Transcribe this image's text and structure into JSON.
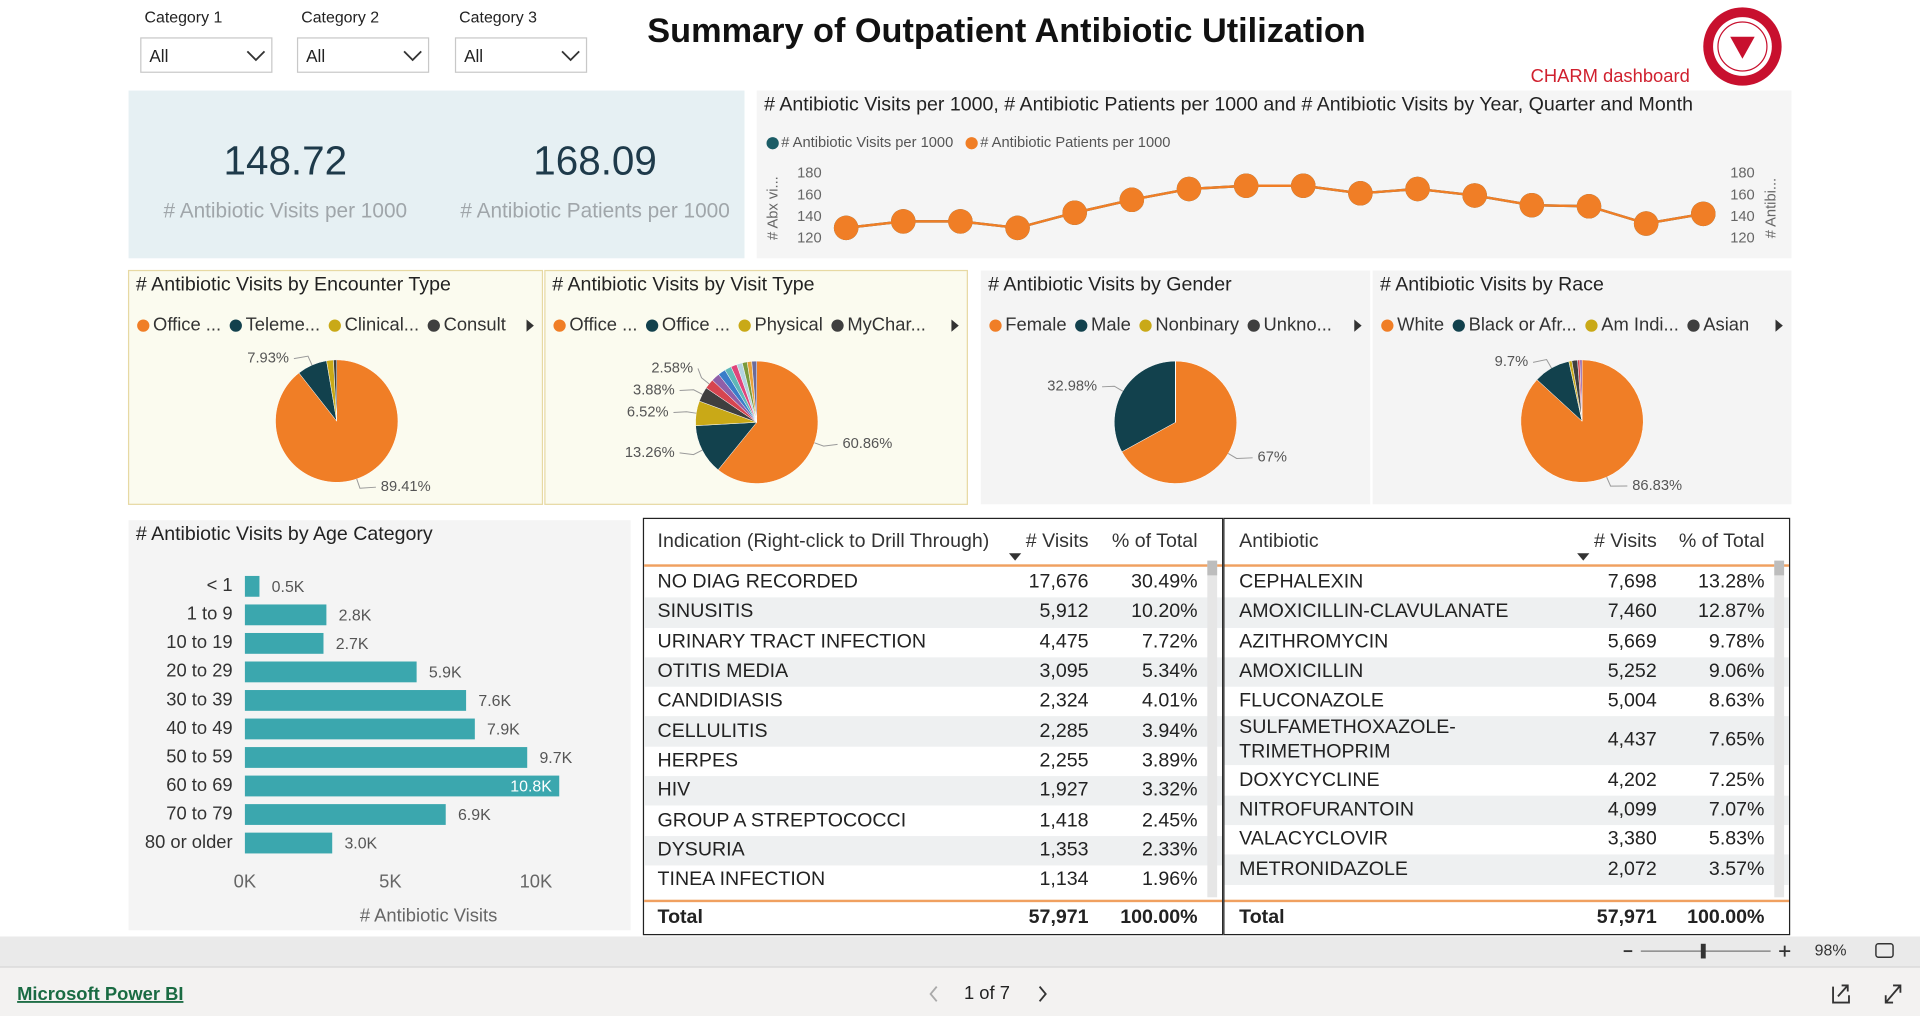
{
  "header": {
    "title": "Summary of Outpatient Antibiotic Utilization",
    "subtitle": "CHARM dashboard"
  },
  "filters": [
    {
      "label": "Category 1",
      "value": "All"
    },
    {
      "label": "Category 2",
      "value": "All"
    },
    {
      "label": "Category 3",
      "value": "All"
    }
  ],
  "kpis": [
    {
      "value": 148.72,
      "label": "# Antibiotic Visits per 1000"
    },
    {
      "value": 168.09,
      "label": "# Antibiotic Patients per 1000"
    }
  ],
  "chart_data": [
    {
      "type": "line",
      "title": "# Antibiotic Visits per 1000, # Antibiotic Patients per 1000 and # Antibiotic Visits by Year, Quarter and Month",
      "categories": [
        null,
        null,
        null,
        null,
        null,
        null,
        null,
        null,
        null,
        null,
        null,
        null,
        null,
        null,
        null,
        null
      ],
      "series": [
        {
          "name": "# Antibiotic Visits per 1000",
          "color": "#1b5c66",
          "values": [
            130,
            136,
            136,
            130,
            144,
            156,
            166,
            169,
            169,
            162,
            166,
            160,
            151,
            150,
            134,
            143
          ]
        },
        {
          "name": "# Antibiotic Patients per 1000",
          "color": "#f07e26",
          "axis": "y2",
          "values": [
            130,
            136,
            136,
            130,
            144,
            156,
            166,
            169,
            169,
            162,
            166,
            160,
            151,
            150,
            134,
            143
          ]
        }
      ],
      "ylabel": "# Abx vi...",
      "y2label": "# Antibi...",
      "ylim": [
        115,
        185
      ],
      "yticks": [
        120,
        140,
        160,
        180
      ],
      "y2lim": [
        115,
        185
      ],
      "y2ticks": [
        120,
        140,
        160,
        180
      ]
    },
    {
      "type": "pie",
      "title": "# Antibiotic Visits by Encounter Type",
      "categories": [
        "Office ...",
        "Teleme...",
        "Clinical...",
        "Consult"
      ],
      "values": [
        89.41,
        7.93,
        1.8,
        0.86
      ],
      "value_labels": [
        "89.41%",
        "7.93%",
        null,
        null
      ],
      "colors": [
        "#f07e26",
        "#12414d",
        "#c9a917",
        "#3f3f3f"
      ]
    },
    {
      "type": "pie",
      "title": "# Antibiotic Visits by Visit Type",
      "categories": [
        "Office ...",
        "Office ...",
        "Physical",
        "MyChar...",
        null,
        null,
        null,
        null,
        null,
        null,
        null,
        null,
        null
      ],
      "values": [
        60.86,
        13.26,
        6.52,
        3.88,
        2.58,
        2.2,
        2.0,
        1.8,
        1.6,
        1.5,
        1.3,
        1.2,
        1.3
      ],
      "value_labels": [
        "60.86%",
        "13.26%",
        "6.52%",
        "3.88%",
        "2.58%",
        null,
        null,
        null,
        null,
        null,
        null,
        null,
        null
      ],
      "colors": [
        "#f07e26",
        "#12414d",
        "#c9a917",
        "#3f3f3f",
        "#d64550",
        "#8f5fa8",
        "#3a7dc9",
        "#5fb8b8",
        "#e0457b",
        "#b3d4e0",
        "#7a9a3c",
        "#e8a33d",
        "#6b6b9a"
      ]
    },
    {
      "type": "pie",
      "title": "# Antibiotic Visits by Gender",
      "categories": [
        "Female",
        "Male",
        "Nonbinary",
        "Unkno..."
      ],
      "values": [
        67,
        32.98,
        0.01,
        0.01
      ],
      "value_labels": [
        "67%",
        "32.98%",
        null,
        null
      ],
      "colors": [
        "#f07e26",
        "#12414d",
        "#c9a917",
        "#3f3f3f"
      ]
    },
    {
      "type": "pie",
      "title": "# Antibiotic Visits by Race",
      "categories": [
        "White",
        "Black or Afr...",
        "Am Indi...",
        "Asian",
        null,
        null
      ],
      "values": [
        86.83,
        9.7,
        0.8,
        1.5,
        0.6,
        0.57
      ],
      "value_labels": [
        "86.83%",
        "9.7%",
        null,
        null,
        null,
        null
      ],
      "colors": [
        "#f07e26",
        "#12414d",
        "#c9a917",
        "#3f3f3f",
        "#d64550",
        "#8f5fa8"
      ]
    },
    {
      "type": "bar",
      "orientation": "horizontal",
      "title": "# Antibiotic Visits by Age Category",
      "categories": [
        "< 1",
        "1 to 9",
        "10 to 19",
        "20 to 29",
        "30 to 39",
        "40 to 49",
        "50 to 59",
        "60 to 69",
        "70 to 79",
        "80 or older"
      ],
      "values": [
        500,
        2800,
        2700,
        5900,
        7600,
        7900,
        9700,
        10800,
        6900,
        3000
      ],
      "value_labels": [
        "0.5K",
        "2.8K",
        "2.7K",
        "5.9K",
        "7.6K",
        "7.9K",
        "9.7K",
        "10.8K",
        "6.9K",
        "3.0K"
      ],
      "color": "#3ba7ae",
      "xlabel": "# Antibiotic Visits",
      "xlim": [
        0,
        13000
      ],
      "xticks": [
        {
          "value": 0,
          "label": "0K"
        },
        {
          "value": 5000,
          "label": "5K"
        },
        {
          "value": 10000,
          "label": "10K"
        }
      ]
    }
  ],
  "tables": [
    {
      "columns": [
        "Indication (Right-click to Drill Through)",
        "# Visits",
        "% of Total"
      ],
      "rows": [
        [
          "NO DIAG RECORDED",
          "17,676",
          "30.49%"
        ],
        [
          "SINUSITIS",
          "5,912",
          "10.20%"
        ],
        [
          "URINARY TRACT INFECTION",
          "4,475",
          "7.72%"
        ],
        [
          "OTITIS MEDIA",
          "3,095",
          "5.34%"
        ],
        [
          "CANDIDIASIS",
          "2,324",
          "4.01%"
        ],
        [
          "CELLULITIS",
          "2,285",
          "3.94%"
        ],
        [
          "HERPES",
          "2,255",
          "3.89%"
        ],
        [
          "HIV",
          "1,927",
          "3.32%"
        ],
        [
          "GROUP A STREPTOCOCCI",
          "1,418",
          "2.45%"
        ],
        [
          "DYSURIA",
          "1,353",
          "2.33%"
        ],
        [
          "TINEA INFECTION",
          "1,134",
          "1.96%"
        ]
      ],
      "total": [
        "Total",
        "57,971",
        "100.00%"
      ]
    },
    {
      "columns": [
        "Antibiotic",
        "# Visits",
        "% of Total"
      ],
      "rows": [
        [
          "CEPHALEXIN",
          "7,698",
          "13.28%"
        ],
        [
          "AMOXICILLIN-CLAVULANATE",
          "7,460",
          "12.87%"
        ],
        [
          "AZITHROMYCIN",
          "5,669",
          "9.78%"
        ],
        [
          "AMOXICILLIN",
          "5,252",
          "9.06%"
        ],
        [
          "FLUCONAZOLE",
          "5,004",
          "8.63%"
        ],
        [
          "SULFAMETHOXAZOLE-TRIMETHOPRIM",
          "4,437",
          "7.65%"
        ],
        [
          "DOXYCYCLINE",
          "4,202",
          "7.25%"
        ],
        [
          "NITROFURANTOIN",
          "4,099",
          "7.07%"
        ],
        [
          "VALACYCLOVIR",
          "3,380",
          "5.83%"
        ],
        [
          "METRONIDAZOLE",
          "2,072",
          "3.57%"
        ]
      ],
      "total": [
        "Total",
        "57,971",
        "100.00%"
      ]
    }
  ],
  "footer": {
    "brand": "Microsoft Power BI",
    "page": "1 of 7",
    "zoom": "98%"
  }
}
